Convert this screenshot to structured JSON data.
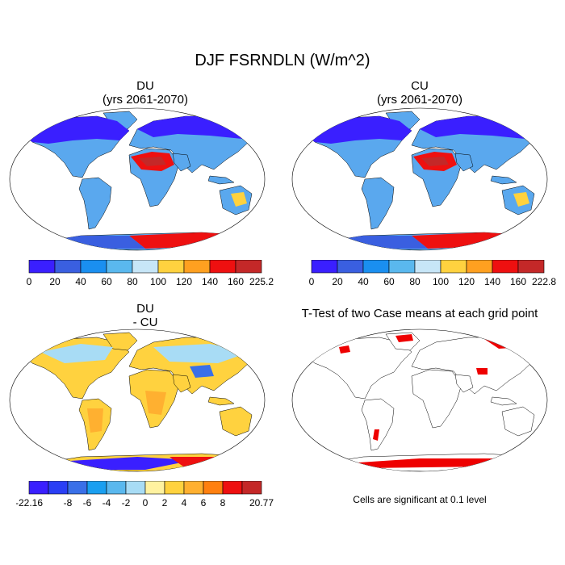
{
  "figure": {
    "title": "DJF FSRNDLN (W/m^2)"
  },
  "panels": [
    {
      "id": "du",
      "title": "DU",
      "subtitle": "(yrs 2061-2070)"
    },
    {
      "id": "cu",
      "title": "CU",
      "subtitle": "(yrs 2061-2070)"
    },
    {
      "id": "diff",
      "title": "DU",
      "subtitle": "- CU"
    },
    {
      "id": "ttest",
      "title": "T-Test of two Case means at each grid point",
      "subtitle": ""
    }
  ],
  "colorbars": {
    "du": {
      "colors": [
        "#3a1fff",
        "#3a5fe0",
        "#1a8ff0",
        "#5ab8ee",
        "#c7e6f7",
        "#ffd23f",
        "#ffa020",
        "#ee1010",
        "#c42828"
      ],
      "labels": [
        "0",
        "20",
        "40",
        "60",
        "80",
        "100",
        "120",
        "140",
        "160",
        "225.2"
      ]
    },
    "cu": {
      "colors": [
        "#3a1fff",
        "#3a5fe0",
        "#1a8ff0",
        "#5ab8ee",
        "#c7e6f7",
        "#ffd23f",
        "#ffa020",
        "#ee1010",
        "#c42828"
      ],
      "labels": [
        "0",
        "20",
        "40",
        "60",
        "80",
        "100",
        "120",
        "140",
        "160",
        "222.8"
      ]
    },
    "diff": {
      "colors": [
        "#3a1fff",
        "#2a3ff5",
        "#3a70e8",
        "#1a9ff0",
        "#5ab8ee",
        "#a8dcf5",
        "#fff2a0",
        "#ffd23f",
        "#ffb030",
        "#ff8010",
        "#ee1010",
        "#c42828"
      ],
      "labels": [
        "-22.16",
        "",
        "-8",
        "-6",
        "-4",
        "-2",
        "0",
        "2",
        "4",
        "6",
        "8",
        "",
        "20.77"
      ]
    }
  },
  "significance_note": "Cells are significant at 0.1 level",
  "colors": {
    "ocean": "#ffffff",
    "coast": "#000000",
    "significant": "#ee0000"
  }
}
